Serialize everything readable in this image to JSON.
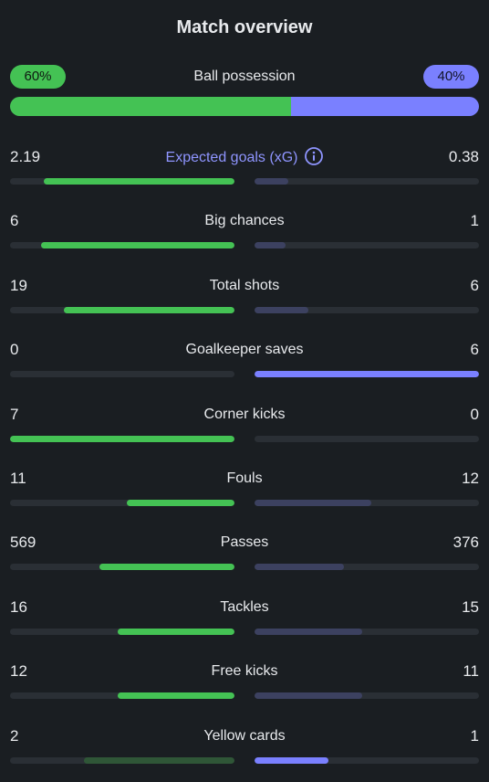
{
  "header": {
    "title": "Match overview"
  },
  "possession": {
    "label": "Ball possession",
    "home_label": "60%",
    "away_label": "40%",
    "home_fraction": 0.6,
    "away_fraction": 0.4
  },
  "colors": {
    "home": "#44c254",
    "away": "#7a80ff",
    "home_dim": "#2f5637",
    "away_dim": "#3c4160",
    "track": "#2a2f35",
    "background": "#1a1e22",
    "accent_text": "#8f95ff"
  },
  "stats": [
    {
      "label": "Expected goals (xG)",
      "home": "2.19",
      "away": "0.38",
      "home_fill": 0.85,
      "away_fill": 0.15,
      "home_state": "win",
      "away_state": "lose",
      "accent": true,
      "info_icon": "info-icon"
    },
    {
      "label": "Big chances",
      "home": "6",
      "away": "1",
      "home_fill": 0.86,
      "away_fill": 0.14,
      "home_state": "win",
      "away_state": "lose"
    },
    {
      "label": "Total shots",
      "home": "19",
      "away": "6",
      "home_fill": 0.76,
      "away_fill": 0.24,
      "home_state": "win",
      "away_state": "lose"
    },
    {
      "label": "Goalkeeper saves",
      "home": "0",
      "away": "6",
      "home_fill": 0.0,
      "away_fill": 1.0,
      "home_state": "lose",
      "away_state": "win"
    },
    {
      "label": "Corner kicks",
      "home": "7",
      "away": "0",
      "home_fill": 1.0,
      "away_fill": 0.0,
      "home_state": "win",
      "away_state": "lose"
    },
    {
      "label": "Fouls",
      "home": "11",
      "away": "12",
      "home_fill": 0.48,
      "away_fill": 0.52,
      "home_state": "win",
      "away_state": "lose"
    },
    {
      "label": "Passes",
      "home": "569",
      "away": "376",
      "home_fill": 0.6,
      "away_fill": 0.4,
      "home_state": "win",
      "away_state": "lose"
    },
    {
      "label": "Tackles",
      "home": "16",
      "away": "15",
      "home_fill": 0.52,
      "away_fill": 0.48,
      "home_state": "win",
      "away_state": "lose"
    },
    {
      "label": "Free kicks",
      "home": "12",
      "away": "11",
      "home_fill": 0.52,
      "away_fill": 0.48,
      "home_state": "win",
      "away_state": "lose"
    },
    {
      "label": "Yellow cards",
      "home": "2",
      "away": "1",
      "home_fill": 0.67,
      "away_fill": 0.33,
      "home_state": "lose",
      "away_state": "win"
    }
  ]
}
